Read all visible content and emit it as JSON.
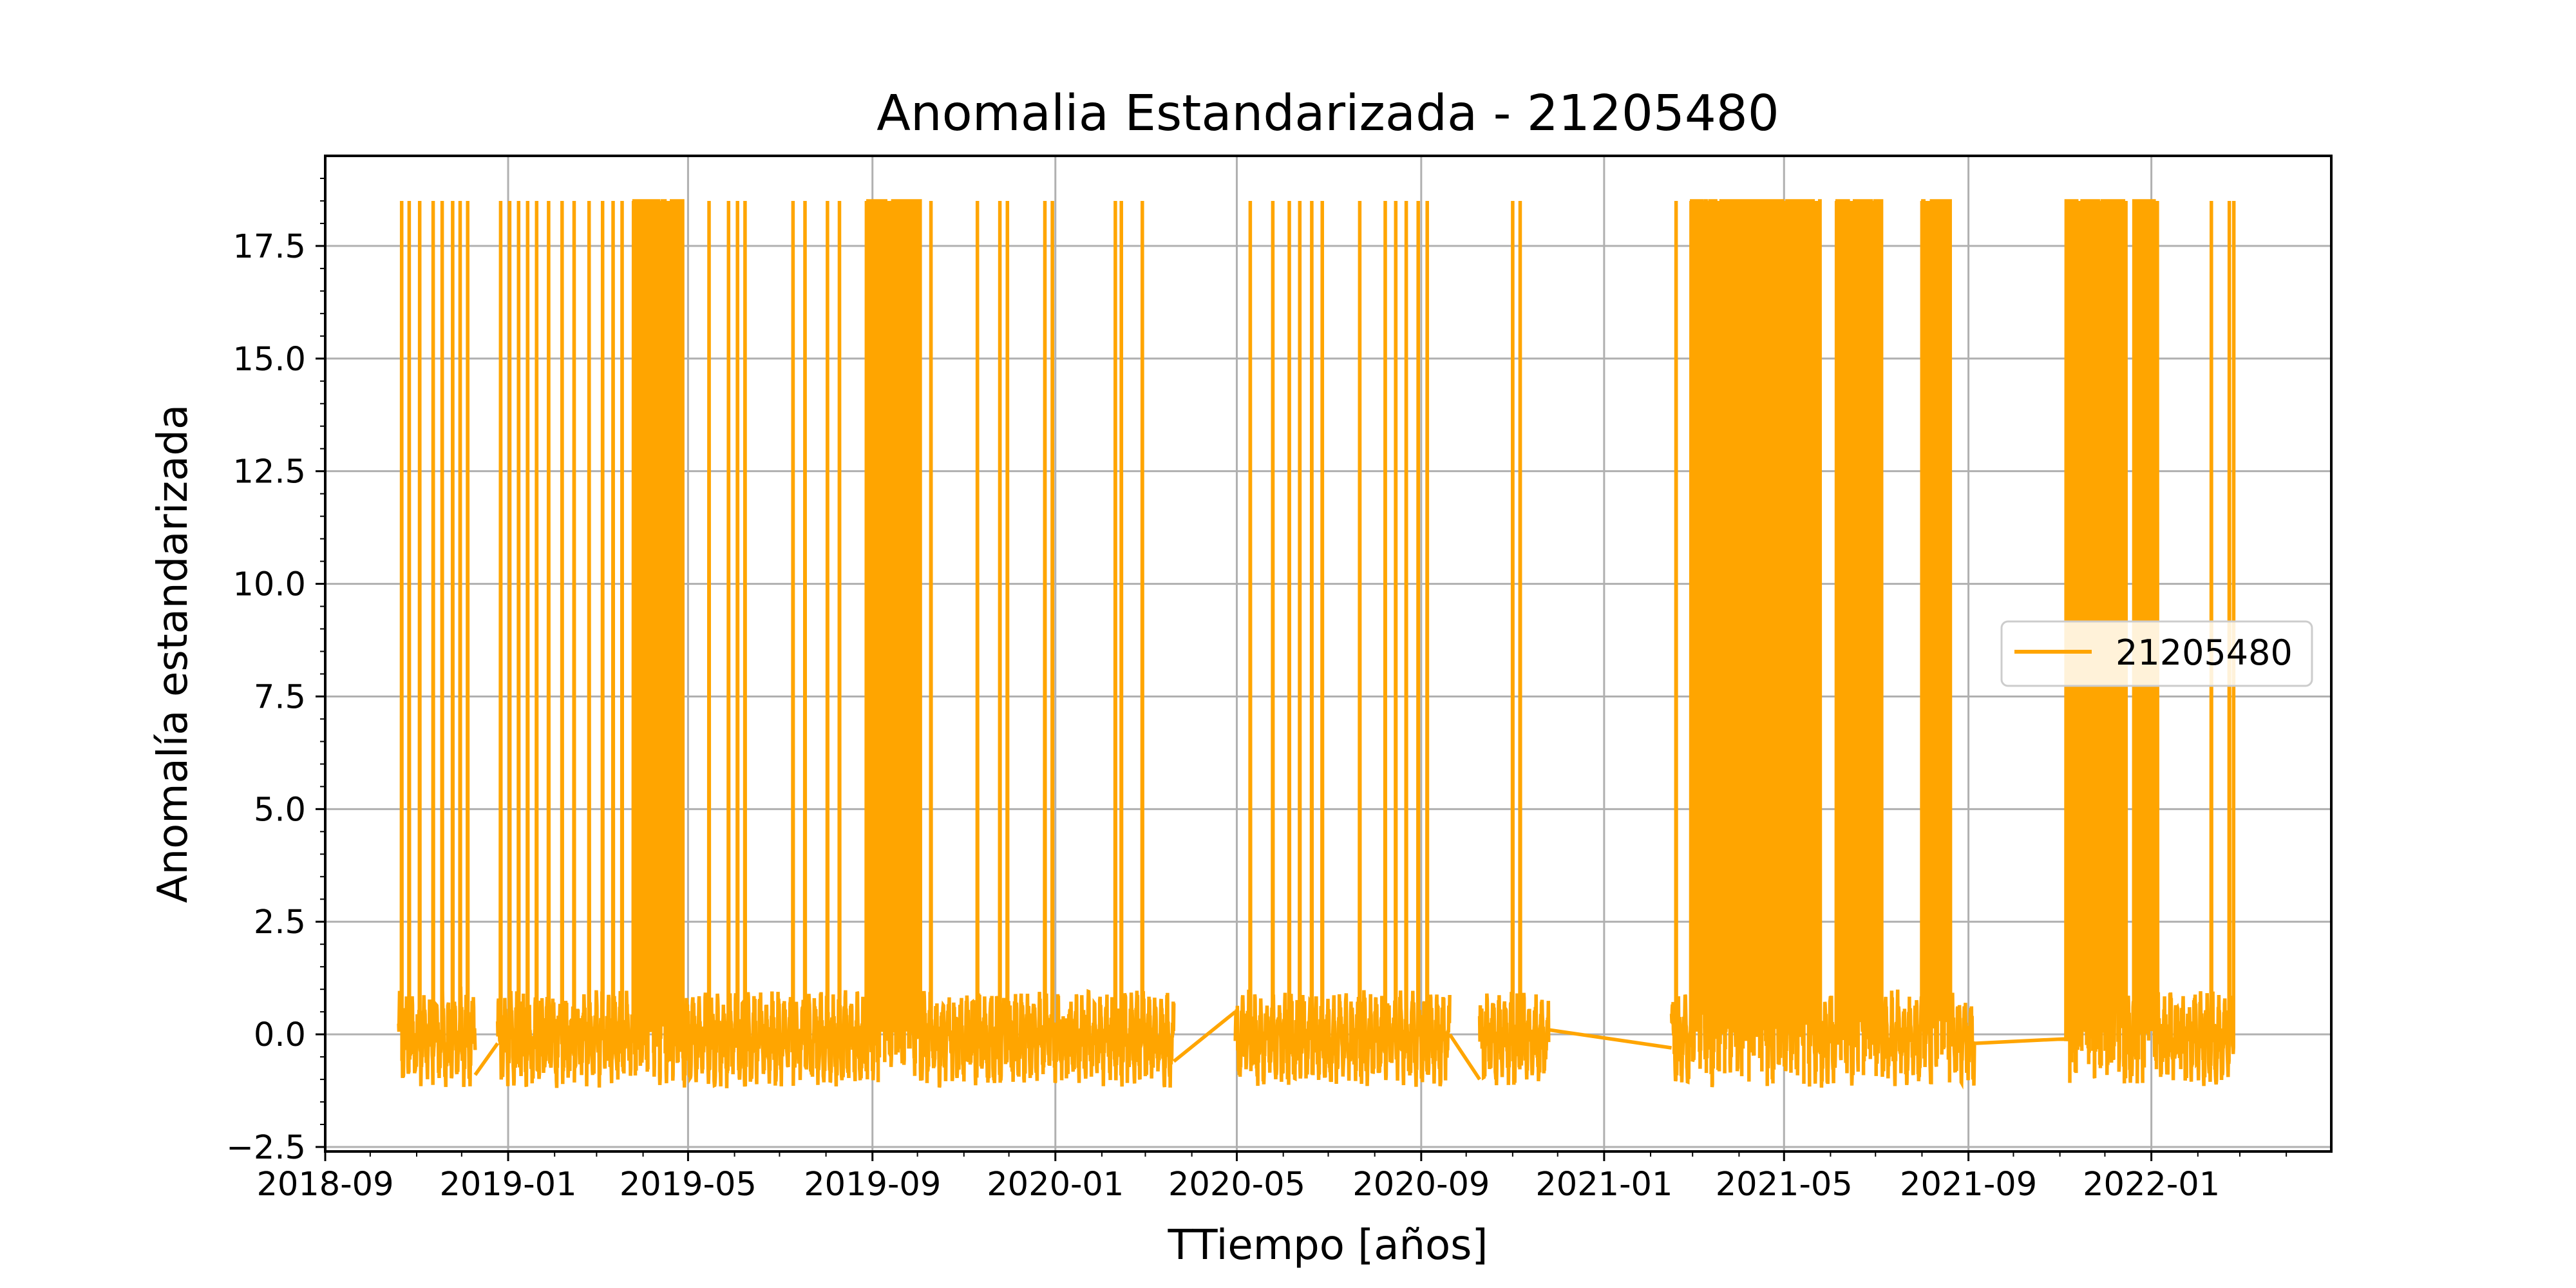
{
  "chart_data": {
    "type": "line",
    "title": "Anomalia Estandarizada - 21205480",
    "xlabel": "TTiempo [años]",
    "ylabel": "Anomalía estandarizada",
    "x_type": "date",
    "xlim": [
      "2018-09-01",
      "2022-05-01"
    ],
    "ylim": [
      -2.6,
      19.5
    ],
    "x_ticks": [
      "2018-09",
      "2019-01",
      "2019-05",
      "2019-09",
      "2020-01",
      "2020-05",
      "2020-09",
      "2021-01",
      "2021-05",
      "2021-09",
      "2022-01"
    ],
    "y_ticks": [
      "−2.5",
      "0.0",
      "2.5",
      "5.0",
      "7.5",
      "10.0",
      "12.5",
      "15.0",
      "17.5"
    ],
    "grid": true,
    "legend": {
      "position": "center-right",
      "entries": [
        "21205480"
      ]
    },
    "series": [
      {
        "name": "21205480",
        "color": "#FFA500",
        "spike_value": 18.5,
        "baseline_range": [
          -1.2,
          1.0
        ],
        "active_periods": [
          [
            "2018-10-20",
            "2018-12-10"
          ],
          [
            "2018-12-25",
            "2020-03-20"
          ],
          [
            "2020-04-30",
            "2020-09-20"
          ],
          [
            "2020-10-10",
            "2020-11-25"
          ],
          [
            "2021-02-15",
            "2021-09-05"
          ],
          [
            "2021-11-05",
            "2022-02-25"
          ]
        ],
        "dense_spike_bands": [
          [
            "2019-03-25",
            "2019-04-28"
          ],
          [
            "2019-08-28",
            "2019-10-03"
          ],
          [
            "2021-02-28",
            "2021-05-25"
          ],
          [
            "2021-06-05",
            "2021-07-05"
          ],
          [
            "2021-08-01",
            "2021-08-20"
          ],
          [
            "2021-11-05",
            "2021-12-15"
          ],
          [
            "2021-12-20",
            "2022-01-05"
          ]
        ],
        "isolated_spikes": [
          "2018-10-22",
          "2018-10-27",
          "2018-11-03",
          "2018-11-12",
          "2018-11-18",
          "2018-11-25",
          "2018-11-30",
          "2018-12-05",
          "2018-12-27",
          "2019-01-02",
          "2019-01-08",
          "2019-01-14",
          "2019-01-20",
          "2019-01-28",
          "2019-02-06",
          "2019-02-14",
          "2019-02-24",
          "2019-03-05",
          "2019-03-12",
          "2019-03-18",
          "2019-05-15",
          "2019-05-28",
          "2019-06-03",
          "2019-06-08",
          "2019-07-10",
          "2019-07-18",
          "2019-08-02",
          "2019-08-10",
          "2019-10-10",
          "2019-11-10",
          "2019-11-25",
          "2019-11-30",
          "2019-12-25",
          "2019-12-30",
          "2020-02-10",
          "2020-02-14",
          "2020-02-28",
          "2020-05-10",
          "2020-05-25",
          "2020-06-05",
          "2020-06-12",
          "2020-06-20",
          "2020-06-27",
          "2020-07-22",
          "2020-08-08",
          "2020-08-15",
          "2020-08-22",
          "2020-08-30",
          "2020-09-05",
          "2020-11-01",
          "2020-11-06",
          "2021-02-18",
          "2021-09-08",
          "2022-02-10",
          "2022-02-22",
          "2022-02-25"
        ],
        "gap_connectors": [
          [
            "2018-12-10",
            -0.9,
            "2018-12-25",
            -0.2
          ],
          [
            "2020-03-20",
            -0.6,
            "2020-04-30",
            0.5
          ],
          [
            "2020-09-20",
            0.0,
            "2020-10-10",
            -1.0
          ],
          [
            "2020-11-25",
            0.1,
            "2021-02-15",
            -0.3
          ],
          [
            "2021-09-05",
            -0.2,
            "2021-11-05",
            -0.1
          ]
        ]
      }
    ]
  }
}
